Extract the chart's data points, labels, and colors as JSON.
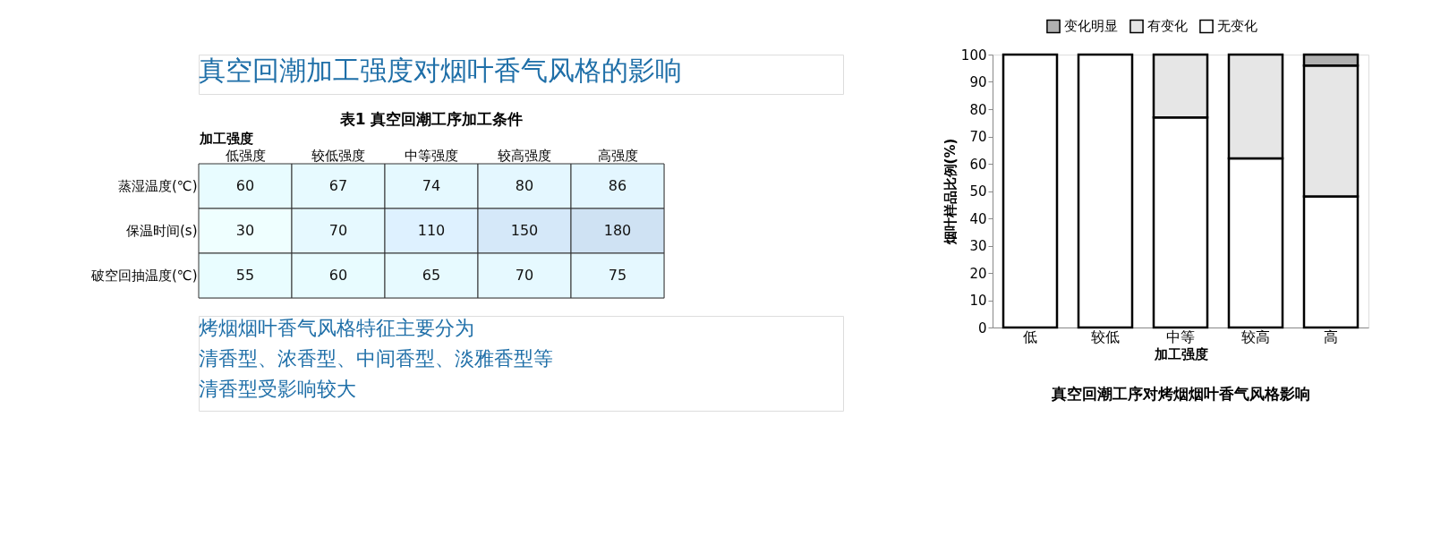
{
  "chart_data": [
    {
      "type": "heatmap",
      "title": "表1  真空回潮工序加工条件",
      "xlabel": "加工强度",
      "categories": [
        "低强度",
        "较低强度",
        "中等强度",
        "较高强度",
        "高强度"
      ],
      "y_categories": [
        "蒸湿温度(℃)",
        "保温时间(s)",
        "破空回抽温度(℃)"
      ],
      "cells": [
        [
          60,
          67,
          74,
          80,
          86
        ],
        [
          30,
          70,
          110,
          150,
          180
        ],
        [
          55,
          60,
          65,
          70,
          75
        ]
      ],
      "data_labels": true,
      "annotations": [
        "真空回潮加工强度对烟叶香气风格的影响",
        "烤烟烟叶香气风格特征主要分为",
        "清香型、浓香型、中间香型、淡雅香型等",
        "清香型受影响较大"
      ]
    },
    {
      "type": "bar",
      "stacked": true,
      "title": "真空回潮工序对烤烟烟叶香气风格影响",
      "xlabel": "加工强度",
      "ylabel": "烟叶样品比例(%)",
      "categories": [
        "低",
        "较低",
        "中等",
        "较高",
        "高"
      ],
      "series": [
        {
          "name": "无变化",
          "color": "#ffffff",
          "values": [
            100,
            100,
            77,
            62,
            48
          ]
        },
        {
          "name": "有变化",
          "color": "#e6e6e6",
          "values": [
            null,
            null,
            23,
            38,
            48
          ]
        },
        {
          "name": "变化明显",
          "color": "#b0b0b0",
          "values": [
            null,
            null,
            null,
            null,
            4
          ]
        }
      ],
      "ylim": [
        0,
        100
      ],
      "yticks": [
        0,
        10,
        20,
        30,
        40,
        50,
        60,
        70,
        80,
        90,
        100
      ],
      "grid": false,
      "legend": "top"
    }
  ]
}
